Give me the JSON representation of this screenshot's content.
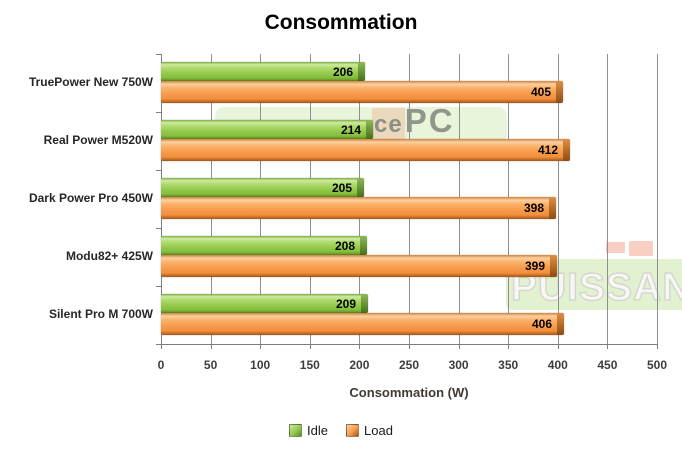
{
  "title": "Consommation",
  "xlabel": "Consommation (W)",
  "legend": {
    "idle_label": "Idle",
    "load_label": "Load"
  },
  "watermarks": {
    "fragment_logo": "cePC",
    "fragment_logo_small": "ce",
    "fragment_logo_big": "PC",
    "fragment_text": "PUISSAN"
  },
  "colors": {
    "idle": "#8dc63f",
    "load": "#f79646",
    "gridline": "#8f8f8f",
    "axis": "#7f7f7f"
  },
  "chart_data": {
    "type": "bar",
    "orientation": "horizontal",
    "title": "Consommation",
    "xlabel": "Consommation (W)",
    "categories": [
      "TruePower New 750W",
      "Real Power M520W",
      "Dark Power Pro 450W",
      "Modu82+ 425W",
      "Silent Pro M 700W"
    ],
    "series": [
      {
        "name": "Idle",
        "color": "#8dc63f",
        "values": [
          206,
          214,
          205,
          208,
          209
        ]
      },
      {
        "name": "Load",
        "color": "#f79646",
        "values": [
          405,
          412,
          398,
          399,
          406
        ]
      }
    ],
    "xlim": [
      0,
      500
    ],
    "x_ticks": [
      0,
      50,
      100,
      150,
      200,
      250,
      300,
      350,
      400,
      450,
      500
    ],
    "grid": "vertical",
    "legend_position": "bottom",
    "value_labels": true
  }
}
